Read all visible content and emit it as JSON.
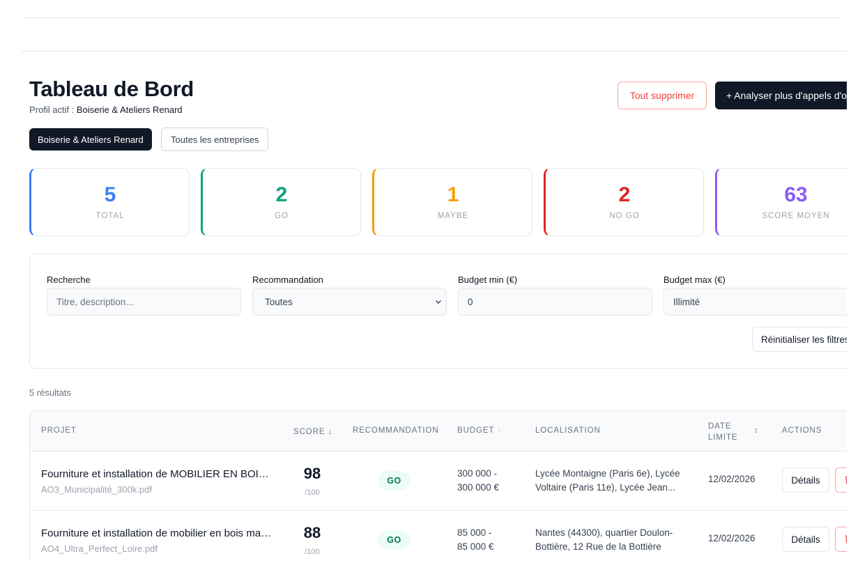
{
  "header": {
    "title": "Tableau de Bord",
    "profile_label": "Profil actif :",
    "profile_name": "Boiserie & Ateliers Renard",
    "delete_all_label": "Tout supprimer",
    "analyze_label": "+ Analyser plus d'appels d'offres"
  },
  "tabs": [
    {
      "label": "Boiserie & Ateliers Renard",
      "active": true
    },
    {
      "label": "Toutes les entreprises",
      "active": false
    }
  ],
  "stats": [
    {
      "value": "5",
      "label": "TOTAL",
      "color": "#3b82f6"
    },
    {
      "value": "2",
      "label": "GO",
      "color": "#10a37f"
    },
    {
      "value": "1",
      "label": "MAYBE",
      "color": "#f59e0b"
    },
    {
      "value": "2",
      "label": "NO GO",
      "color": "#dc2626"
    },
    {
      "value": "63",
      "label": "SCORE MOYEN",
      "color": "#8b5cf6"
    }
  ],
  "filters": {
    "search_label": "Recherche",
    "search_placeholder": "Titre, description...",
    "recommendation_label": "Recommandation",
    "recommendation_value": "Toutes",
    "budget_min_label": "Budget min (€)",
    "budget_min_value": "0",
    "budget_max_label": "Budget max (€)",
    "budget_max_value": "Illimité",
    "reset_label": "Réinitialiser les filtres"
  },
  "results_count": "5 résultats",
  "table": {
    "columns": {
      "project": "PROJET",
      "score": "SCORE",
      "recommendation": "RECOMMANDATION",
      "budget": "BUDGET",
      "location": "LOCALISATION",
      "deadline_line1": "DATE",
      "deadline_line2": "LIMITE",
      "actions": "ACTIONS"
    },
    "rows": [
      {
        "title": "Fourniture et installation de MOBILIER EN BOIS pour les lycées de la Ville de Paris",
        "file": "AO3_Municipalité_300k.pdf",
        "score": "98",
        "score_max": "/100",
        "recommendation": "GO",
        "budget_line1": "300 000 -",
        "budget_line2": "300 000 €",
        "location_line1": "Lycée Montaigne (Paris 6e), Lycée",
        "location_line2": "Voltaire (Paris 11e), Lycée Jean...",
        "deadline": "12/02/2026",
        "details_label": "Détails"
      },
      {
        "title": "Fourniture et installation de mobilier en bois massif pour la médiathèque",
        "file": "AO4_Ultra_Perfect_Loire.pdf",
        "score": "88",
        "score_max": "/100",
        "recommendation": "GO",
        "budget_line1": "85 000 -",
        "budget_line2": "85 000 €",
        "location_line1": "Nantes (44300), quartier Doulon-",
        "location_line2": "Bottière, 12 Rue de la Bottière",
        "deadline": "12/02/2026",
        "details_label": "Détails"
      }
    ]
  },
  "icons": {
    "sort_desc": "arrow-down-icon",
    "sortable": "sort-icon",
    "chevron": "chevron-down-icon",
    "delete": "trash-icon"
  }
}
